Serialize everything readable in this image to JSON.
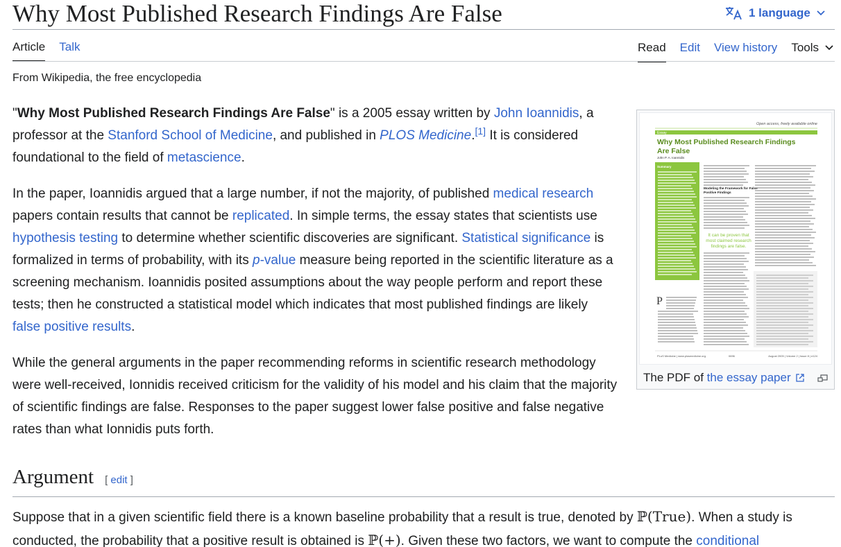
{
  "header": {
    "title": "Why Most Published Research Findings Are False",
    "language_label": "1 language"
  },
  "tabs": {
    "left": [
      "Article",
      "Talk"
    ],
    "right": [
      "Read",
      "Edit",
      "View history"
    ],
    "tools_label": "Tools"
  },
  "tagline": "From Wikipedia, the free encyclopedia",
  "intro": {
    "p1": {
      "open_quote": "\"",
      "bold_title": "Why Most Published Research Findings Are False",
      "t1": "\" is a 2005 essay written by ",
      "link_author": "John Ioannidis",
      "t2": ", a professor at the ",
      "link_school": "Stanford School of Medicine",
      "t3": ", and published in ",
      "link_journal": "PLOS Medicine",
      "t4": ".",
      "ref": "[1]",
      "t5": " It is considered foundational to the field of ",
      "link_meta": "metascience",
      "t6": "."
    },
    "p2": {
      "t1": "In the paper, Ioannidis argued that a large number, if not the majority, of published ",
      "link_med": "medical research",
      "t2": " papers contain results that cannot be ",
      "link_rep": "replicated",
      "t3": ". In simple terms, the essay states that scientists use ",
      "link_hyp": "hypothesis testing",
      "t4": " to determine whether scientific discoveries are significant. ",
      "link_stat": "Statistical significance",
      "t5": " is formalized in terms of probability, with its ",
      "link_p": "p",
      "link_pval": "-value",
      "t6": " measure being reported in the scientific literature as a screening mechanism. Ioannidis posited assumptions about the way people perform and report these tests; then he constructed a statistical model which indicates that most published findings are likely ",
      "link_fp": "false positive results",
      "t7": "."
    },
    "p3": "While the general arguments in the paper recommending reforms in scientific research methodology were well-received, Ionnidis received criticism for the validity of his model and his claim that the majority of scientific findings are false. Responses to the paper suggest lower false positive and false negative rates than what Ionnidis puts forth."
  },
  "infobox": {
    "caption_prefix": "The PDF of ",
    "caption_link": "the essay paper",
    "thumb": {
      "top_line": "Open access, freely available online",
      "kind": "Essay",
      "paper_title": "Why Most Published Research Findings Are False",
      "author": "John P. A. Ioannidis",
      "summary_label": "Summary",
      "pull_quote": "It can be proven that most claimed research findings are false.",
      "section_head": "Modeling the Framework for False Positive Findings",
      "footer_left": "PLoS Medicine | www.plosmedicine.org",
      "footer_mid": "0696",
      "footer_right": "August 2005 | Volume 2 | Issue 8 | e124"
    }
  },
  "section": {
    "title": "Argument",
    "edit_open": "[ ",
    "edit_label": "edit",
    "edit_close": " ]"
  },
  "argument": {
    "t1": "Suppose that in a given scientific field there is a known baseline probability that a result is true, denoted by ",
    "math1": "ℙ(True)",
    "t2": ". When a study is conducted, the probability that a positive result is obtained is ",
    "math2": "ℙ(+)",
    "t3": ". Given these two factors, we want to compute the ",
    "link_cond": "conditional"
  },
  "colors": {
    "link": "#3366cc",
    "text": "#202122",
    "paper_green": "#8cc63f",
    "paper_title": "#5a8c1e"
  }
}
